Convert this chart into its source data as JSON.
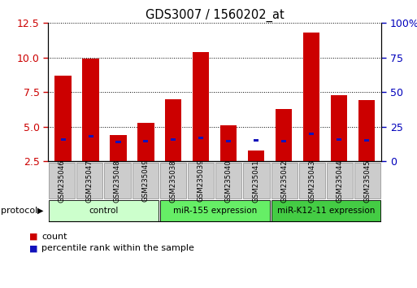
{
  "title": "GDS3007 / 1560202_at",
  "samples": [
    "GSM235046",
    "GSM235047",
    "GSM235048",
    "GSM235049",
    "GSM235038",
    "GSM235039",
    "GSM235040",
    "GSM235041",
    "GSM235042",
    "GSM235043",
    "GSM235044",
    "GSM235045"
  ],
  "red_values": [
    8.7,
    9.9,
    4.4,
    5.3,
    7.0,
    10.4,
    5.1,
    3.3,
    6.3,
    11.8,
    7.3,
    6.9
  ],
  "blue_values": [
    4.0,
    4.2,
    3.8,
    3.85,
    4.0,
    4.1,
    3.85,
    3.9,
    3.85,
    4.4,
    4.0,
    3.9
  ],
  "blue_heights": [
    0.18,
    0.18,
    0.18,
    0.18,
    0.18,
    0.18,
    0.18,
    0.18,
    0.18,
    0.18,
    0.18,
    0.18
  ],
  "bar_baseline": 2.5,
  "ylim_left": [
    2.5,
    12.5
  ],
  "ylim_right": [
    0,
    100
  ],
  "yticks_left": [
    2.5,
    5.0,
    7.5,
    10.0,
    12.5
  ],
  "yticks_right": [
    0,
    25,
    50,
    75,
    100
  ],
  "bar_width": 0.6,
  "blue_bar_width": 0.18,
  "red_color": "#cc0000",
  "blue_color": "#1111bb",
  "groups": [
    {
      "label": "control",
      "start": 0,
      "end": 4,
      "color": "#ccffcc"
    },
    {
      "label": "miR-155 expression",
      "start": 4,
      "end": 8,
      "color": "#66ee66"
    },
    {
      "label": "miR-K12-11 expression",
      "start": 8,
      "end": 12,
      "color": "#44cc44"
    }
  ],
  "protocol_label": "protocol",
  "xlabel_bg_color": "#cccccc",
  "background_color": "#ffffff",
  "tick_color_left": "#cc0000",
  "tick_color_right": "#0000bb",
  "legend_count_color": "#cc0000",
  "legend_pct_color": "#1111bb"
}
